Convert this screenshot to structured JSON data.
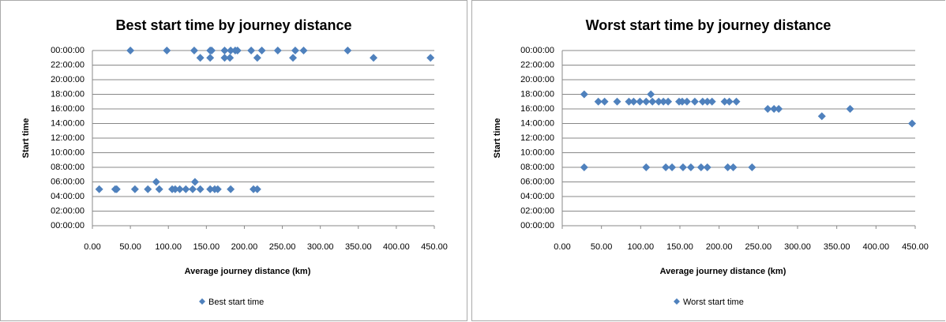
{
  "chart_data": [
    {
      "type": "scatter",
      "title": "Best start time by journey distance",
      "x_label": "Average journey distance (km)",
      "y_label": "Start time",
      "series": [
        {
          "name": "Best start time",
          "color": "#4f81bd",
          "x": [
            50,
            98,
            134,
            155,
            157,
            174,
            182,
            188,
            191,
            209,
            223,
            244,
            267,
            278,
            336,
            142,
            155,
            174,
            181,
            217,
            264,
            370,
            445,
            9,
            30,
            32,
            56,
            73,
            88,
            105,
            109,
            115,
            123,
            132,
            142,
            155,
            161,
            165,
            182,
            212,
            217,
            84,
            135
          ],
          "values": [
            24,
            24,
            24,
            24,
            24,
            24,
            24,
            24,
            24,
            24,
            24,
            24,
            24,
            24,
            24,
            23,
            23,
            23,
            23,
            23,
            23,
            23,
            23,
            5,
            5,
            5,
            5,
            5,
            5,
            5,
            5,
            5,
            5,
            5,
            5,
            5,
            5,
            5,
            5,
            5,
            5,
            6,
            6
          ]
        }
      ],
      "xlim": [
        0,
        450
      ],
      "xticks": [
        {
          "value": 0,
          "label": "0.00"
        },
        {
          "value": 50,
          "label": "50.00"
        },
        {
          "value": 100,
          "label": "100.00"
        },
        {
          "value": 150,
          "label": "150.00"
        },
        {
          "value": 200,
          "label": "200.00"
        },
        {
          "value": 250,
          "label": "250.00"
        },
        {
          "value": 300,
          "label": "300.00"
        },
        {
          "value": 350,
          "label": "350.00"
        },
        {
          "value": 400,
          "label": "400.00"
        },
        {
          "value": 450,
          "label": "450.00"
        }
      ],
      "ylim": [
        0,
        24
      ],
      "yticks": [
        {
          "value": 0,
          "label": "00:00:00"
        },
        {
          "value": 2,
          "label": "02:00:00"
        },
        {
          "value": 4,
          "label": "04:00:00"
        },
        {
          "value": 6,
          "label": "06:00:00"
        },
        {
          "value": 8,
          "label": "08:00:00"
        },
        {
          "value": 10,
          "label": "10:00:00"
        },
        {
          "value": 12,
          "label": "12:00:00"
        },
        {
          "value": 14,
          "label": "14:00:00"
        },
        {
          "value": 16,
          "label": "16:00:00"
        },
        {
          "value": 18,
          "label": "18:00:00"
        },
        {
          "value": 20,
          "label": "20:00:00"
        },
        {
          "value": 22,
          "label": "22:00:00"
        },
        {
          "value": 24,
          "label": "00:00:00"
        }
      ],
      "grid": true
    },
    {
      "type": "scatter",
      "title": "Worst start time by journey distance",
      "x_label": "Average journey distance (km)",
      "y_label": "Start time",
      "series": [
        {
          "name": "Worst start time",
          "color": "#4f81bd",
          "x": [
            28,
            113,
            46,
            54,
            70,
            85,
            91,
            99,
            107,
            115,
            123,
            129,
            135,
            149,
            153,
            159,
            169,
            179,
            185,
            191,
            207,
            213,
            222,
            262,
            270,
            276,
            367,
            331,
            446,
            28,
            107,
            132,
            140,
            154,
            164,
            177,
            185,
            211,
            218,
            242
          ],
          "values": [
            18,
            18,
            17,
            17,
            17,
            17,
            17,
            17,
            17,
            17,
            17,
            17,
            17,
            17,
            17,
            17,
            17,
            17,
            17,
            17,
            17,
            17,
            17,
            16,
            16,
            16,
            16,
            15,
            14,
            8,
            8,
            8,
            8,
            8,
            8,
            8,
            8,
            8,
            8,
            8
          ]
        }
      ],
      "xlim": [
        0,
        450
      ],
      "xticks": [
        {
          "value": 0,
          "label": "0.00"
        },
        {
          "value": 50,
          "label": "50.00"
        },
        {
          "value": 100,
          "label": "100.00"
        },
        {
          "value": 150,
          "label": "150.00"
        },
        {
          "value": 200,
          "label": "200.00"
        },
        {
          "value": 250,
          "label": "250.00"
        },
        {
          "value": 300,
          "label": "300.00"
        },
        {
          "value": 350,
          "label": "350.00"
        },
        {
          "value": 400,
          "label": "400.00"
        },
        {
          "value": 450,
          "label": "450.00"
        }
      ],
      "ylim": [
        0,
        24
      ],
      "yticks": [
        {
          "value": 0,
          "label": "00:00:00"
        },
        {
          "value": 2,
          "label": "02:00:00"
        },
        {
          "value": 4,
          "label": "04:00:00"
        },
        {
          "value": 6,
          "label": "06:00:00"
        },
        {
          "value": 8,
          "label": "08:00:00"
        },
        {
          "value": 10,
          "label": "10:00:00"
        },
        {
          "value": 12,
          "label": "12:00:00"
        },
        {
          "value": 14,
          "label": "14:00:00"
        },
        {
          "value": 16,
          "label": "16:00:00"
        },
        {
          "value": 18,
          "label": "18:00:00"
        },
        {
          "value": 20,
          "label": "20:00:00"
        },
        {
          "value": 22,
          "label": "22:00:00"
        },
        {
          "value": 24,
          "label": "00:00:00"
        }
      ],
      "grid": true
    }
  ]
}
